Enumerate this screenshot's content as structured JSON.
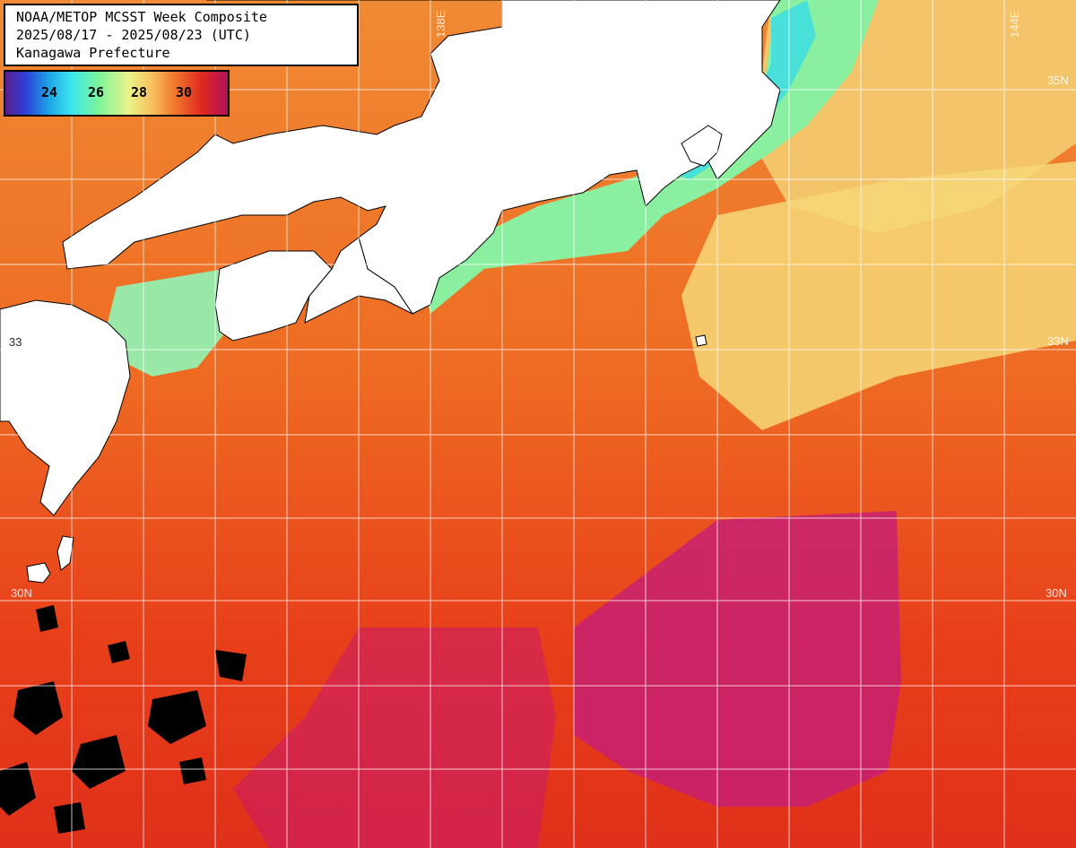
{
  "title": {
    "line1": "NOAA/METOP MCSST Week Composite",
    "line2": "2025/08/17 - 2025/08/23 (UTC)",
    "line3": "Kanagawa Prefecture"
  },
  "colorbar": {
    "ticks": [
      "24",
      "26",
      "28",
      "30"
    ]
  },
  "grid_labels": {
    "lon_138": "138E",
    "lon_144": "144E",
    "lat_35_right": "35N",
    "lat_33_right": "33N",
    "lat_33_left": "33",
    "lat_30_right": "30N",
    "lat_30_left": "30N"
  },
  "colors": {
    "land": "#ffffff",
    "cloud": "#000000",
    "grid": "#ffffff"
  }
}
